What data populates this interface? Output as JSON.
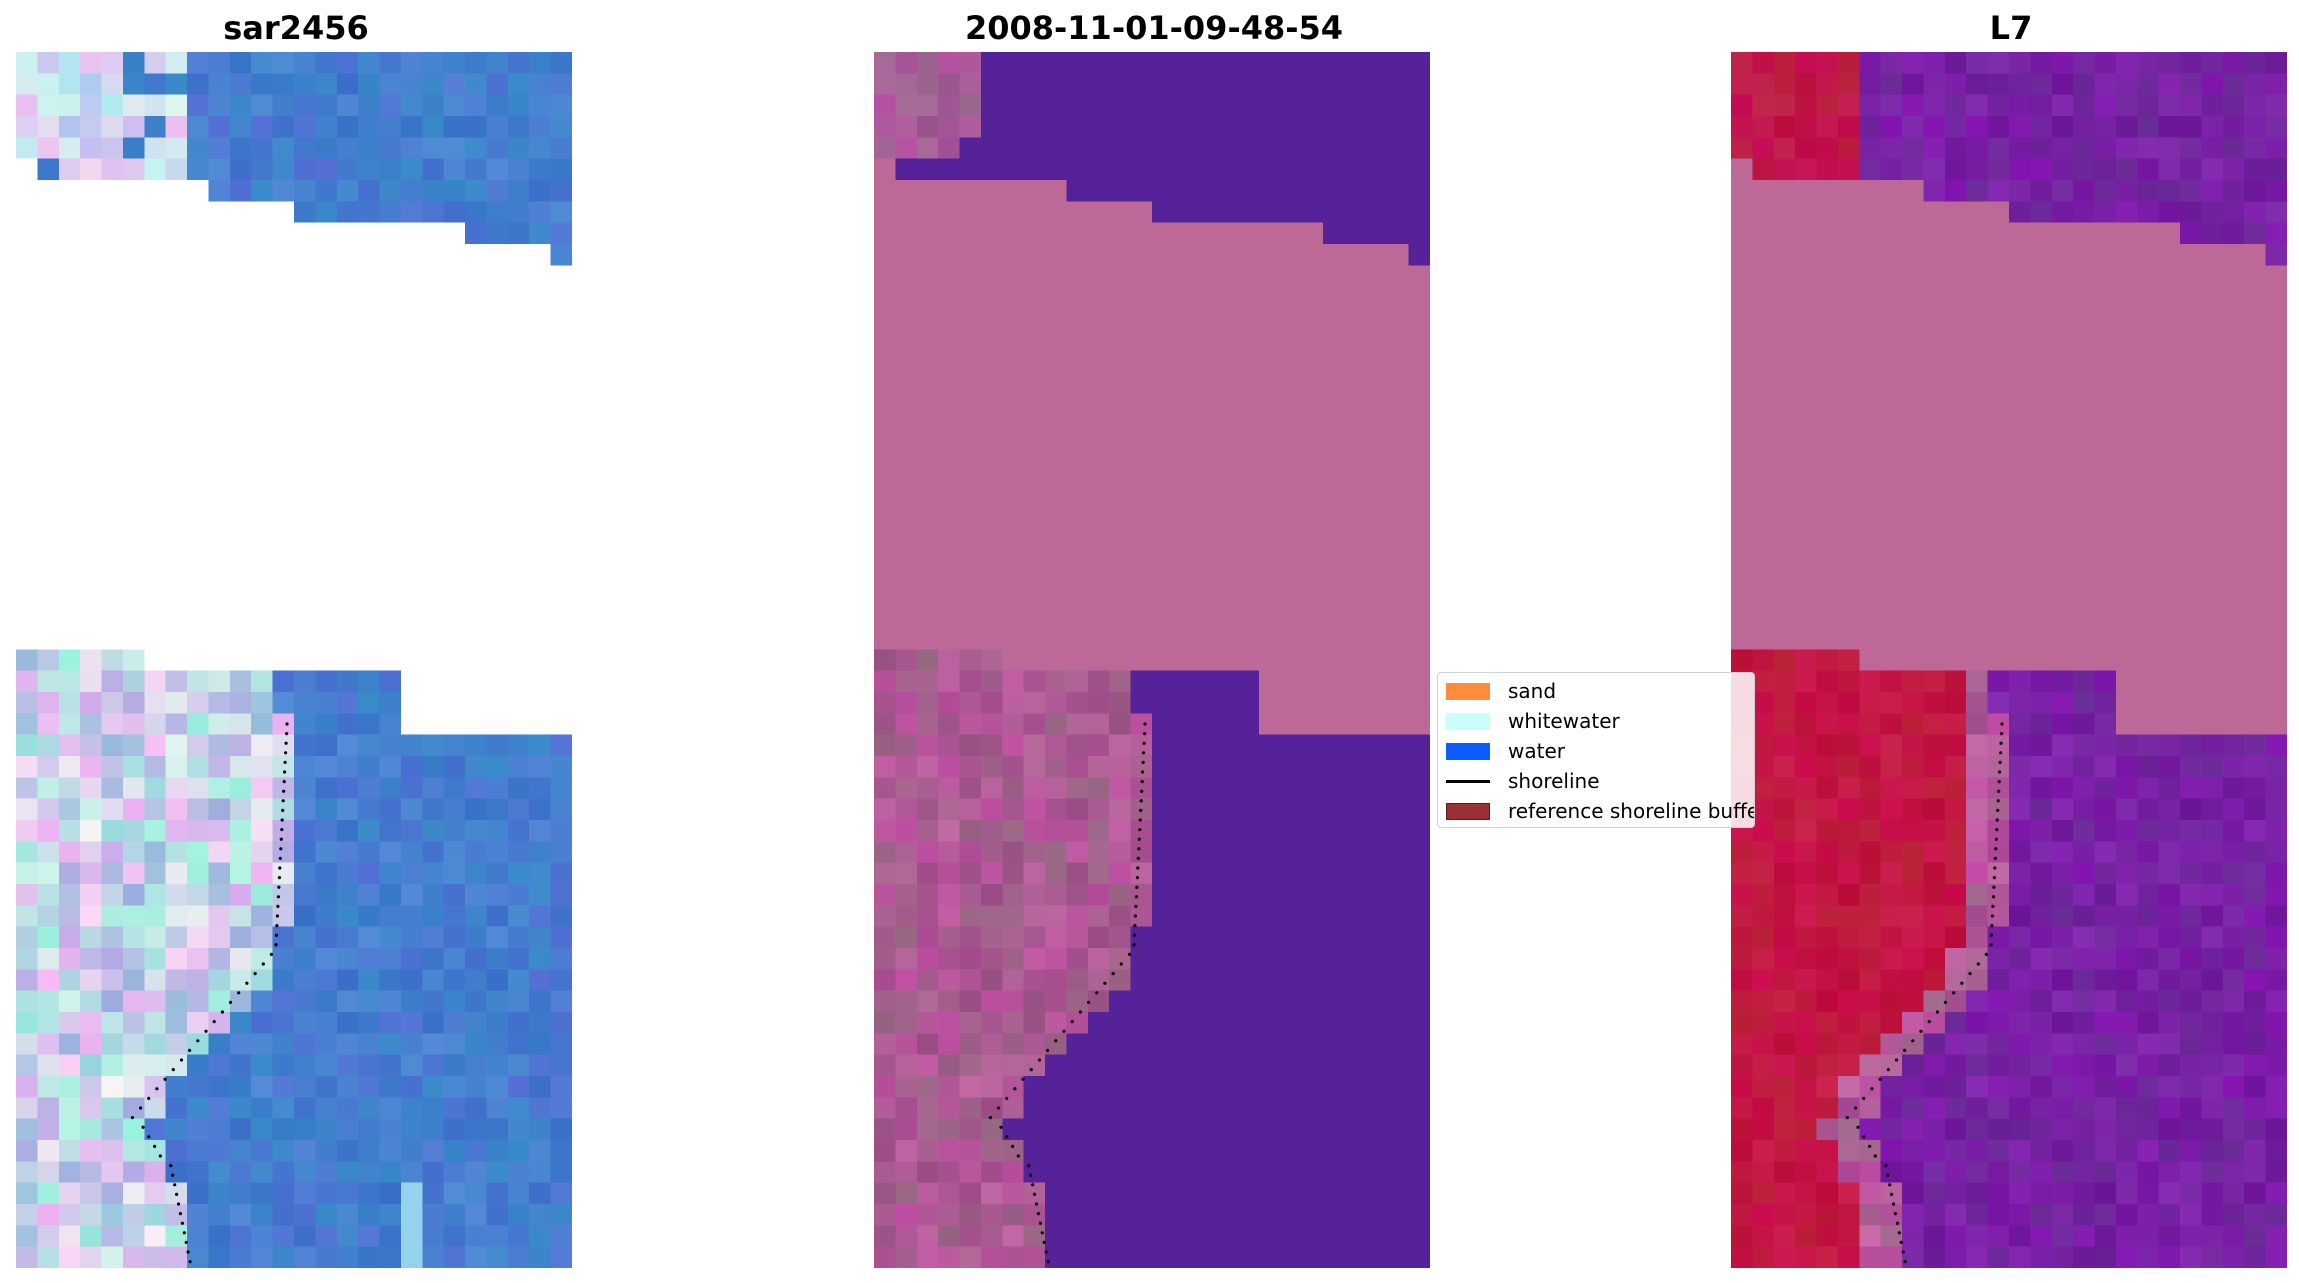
{
  "panels": [
    {
      "id": "rgb",
      "title": "sar2456"
    },
    {
      "id": "classified",
      "title": "2008-11-01-09-48-54"
    },
    {
      "id": "index",
      "title": "L7"
    }
  ],
  "legend": {
    "items": [
      {
        "label": "sand",
        "type": "patch",
        "color": "#ff8c3c"
      },
      {
        "label": "whitewater",
        "type": "patch",
        "color": "#c8fffa"
      },
      {
        "label": "water",
        "type": "patch",
        "color": "#0a5cff"
      },
      {
        "label": "shoreline",
        "type": "line",
        "color": "#000000"
      },
      {
        "label": "reference shoreline buffer",
        "type": "patch",
        "color": "#9a3034"
      }
    ]
  },
  "colors": {
    "nodata_pink": "#bd6897",
    "water_purple": "#55229a",
    "shore_pink": "#a0558f",
    "land_red": "#c2123b",
    "sea_purple": "#7a1fa0",
    "sea_blue": "#3f72cc"
  }
}
